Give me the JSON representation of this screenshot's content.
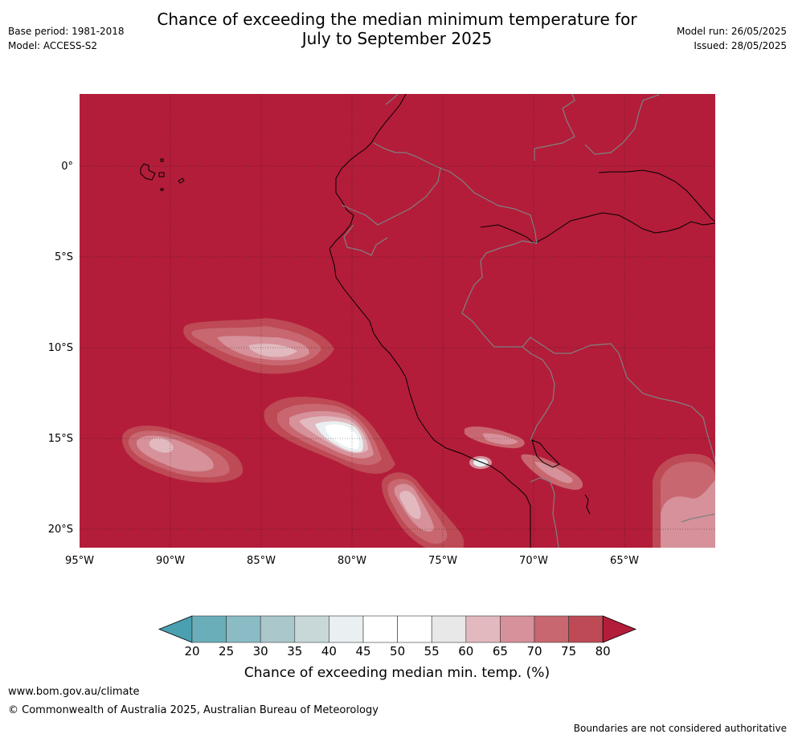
{
  "header": {
    "title_line1": "Chance of exceeding the median minimum temperature for",
    "title_line2": "July to September 2025",
    "base_period": "Base period: 1981-2018",
    "model": "Model: ACCESS-S2",
    "model_run": "Model run: 26/05/2025",
    "issued": "Issued: 28/05/2025"
  },
  "map": {
    "lon_labels": [
      "95°W",
      "90°W",
      "85°W",
      "80°W",
      "75°W",
      "70°W",
      "65°W"
    ],
    "lat_labels": [
      "0°",
      "5°S",
      "10°S",
      "15°S",
      "20°S"
    ],
    "background_category": "80+",
    "background_color": "#b31d3a",
    "coastline_color": "#000000",
    "border_color": "#808080"
  },
  "colorbar": {
    "ticks": [
      "20",
      "25",
      "30",
      "35",
      "40",
      "45",
      "50",
      "55",
      "60",
      "65",
      "70",
      "75",
      "80"
    ],
    "colors": [
      "#4aa0b0",
      "#6aaeba",
      "#8bbcc6",
      "#aac8cc",
      "#c8d8d9",
      "#eaeff1",
      "#ffffff",
      "#ffffff",
      "#e8e8e8",
      "#e1b9be",
      "#d6919a",
      "#c8676f",
      "#bd4a55",
      "#b31d3a"
    ],
    "label": "Chance of exceeding median min. temp. (%)"
  },
  "footer": {
    "website": "www.bom.gov.au/climate",
    "copyright": "© Commonwealth of Australia 2025, Australian Bureau of Meteorology",
    "disclaimer": "Boundaries are not considered authoritative"
  }
}
